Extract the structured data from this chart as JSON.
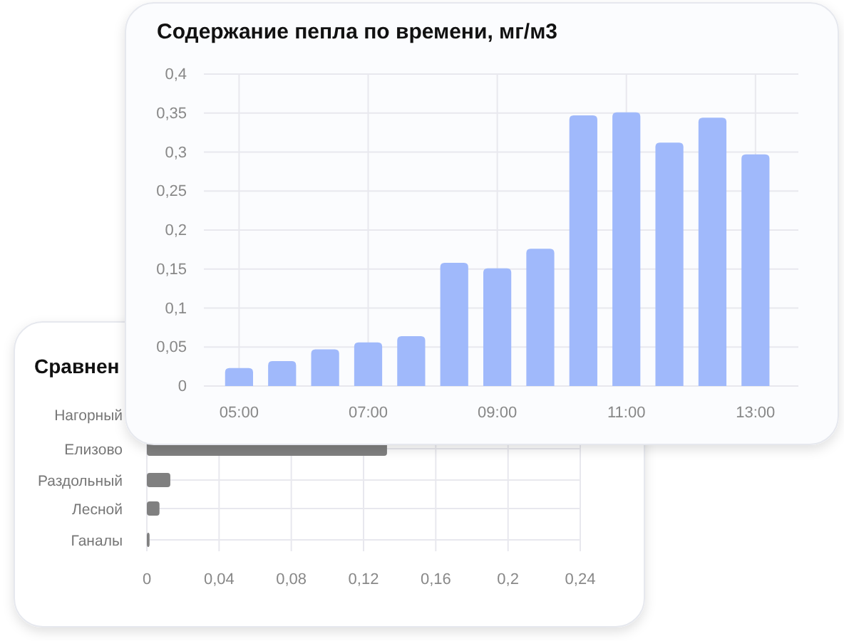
{
  "chart_data": [
    {
      "type": "bar",
      "title": "Содержание пепла по времени, мг/м3",
      "categories": [
        "05:00",
        null,
        null,
        "07:00",
        null,
        null,
        "09:00",
        null,
        null,
        "11:00",
        null,
        null,
        "13:00"
      ],
      "series": [
        {
          "color": "#a0b9fb",
          "values": [
            0.023,
            0.032,
            0.047,
            0.056,
            0.064,
            0.158,
            0.151,
            0.176,
            0.347,
            0.351,
            0.312,
            0.344,
            0.297
          ]
        }
      ],
      "ylim": [
        0,
        0.4
      ],
      "yticks": [
        0,
        {
          "value": 0.05,
          "label": "0,05"
        },
        {
          "value": 0.1,
          "label": "0,1"
        },
        {
          "value": 0.15,
          "label": "0,15"
        },
        {
          "value": 0.2,
          "label": "0,2"
        },
        {
          "value": 0.25,
          "label": "0,25"
        },
        {
          "value": 0.3,
          "label": "0,3"
        },
        {
          "value": 0.35,
          "label": "0,35"
        },
        {
          "value": 0.4,
          "label": "0,4"
        }
      ],
      "grid": true
    },
    {
      "type": "bar",
      "orientation": "horizontal",
      "title": "Сравнен",
      "categories": [
        "Нагорный",
        "Елизово",
        "Раздольный",
        "Лесной",
        "Ганалы"
      ],
      "series": [
        {
          "color": "#808080",
          "values": [
            null,
            0.133,
            0.013,
            0.007,
            0.0015
          ]
        }
      ],
      "xlim": [
        0,
        0.24
      ],
      "xticks": [
        0,
        {
          "value": 0.04,
          "label": "0,04"
        },
        {
          "value": 0.08,
          "label": "0,08"
        },
        {
          "value": 0.12,
          "label": "0,12"
        },
        {
          "value": 0.16,
          "label": "0,16"
        },
        {
          "value": 0.2,
          "label": "0,2"
        },
        {
          "value": 0.24,
          "label": "0,24"
        }
      ],
      "grid": true
    }
  ]
}
